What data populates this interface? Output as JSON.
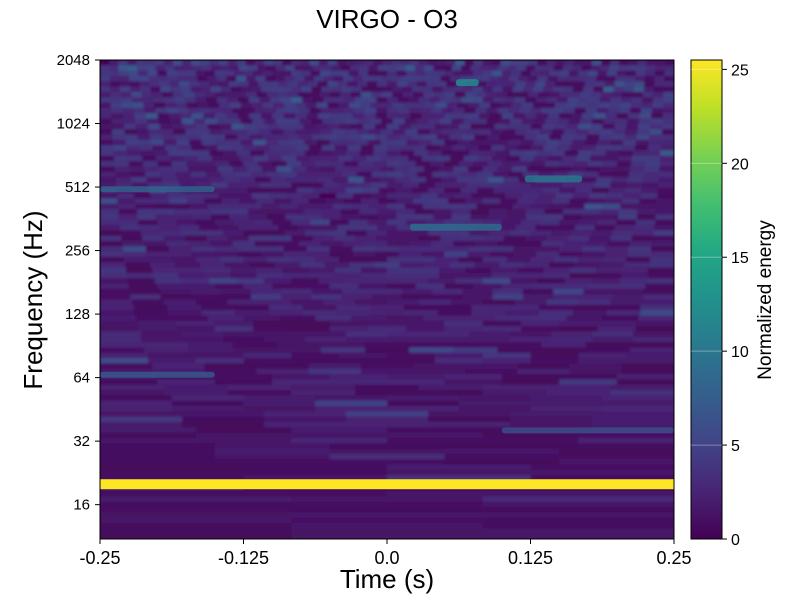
{
  "chart_data": {
    "type": "heatmap",
    "title": "VIRGO - O3",
    "xlabel": "Time (s)",
    "ylabel": "Frequency (Hz)",
    "colorbar_label": "Normalized energy",
    "colormap": "viridis",
    "x_ticks": [
      "-0.25",
      "-0.125",
      "0.0",
      "0.125",
      "0.25"
    ],
    "x_tick_values": [
      -0.25,
      -0.125,
      0.0,
      0.125,
      0.25
    ],
    "xlim": [
      -0.25,
      0.25
    ],
    "y_scale": "log2",
    "y_ticks": [
      "16",
      "32",
      "64",
      "128",
      "256",
      "512",
      "1024",
      "2048"
    ],
    "y_tick_values": [
      16,
      32,
      64,
      128,
      256,
      512,
      1024,
      2048
    ],
    "ylim": [
      11,
      2048
    ],
    "colorbar_ticks": [
      "0",
      "5",
      "10",
      "15",
      "20",
      "25"
    ],
    "colorbar_tick_values": [
      0,
      5,
      10,
      15,
      20,
      25
    ],
    "clim": [
      0,
      25.5
    ],
    "features": [
      {
        "label": "line",
        "frequency_hz": 20,
        "time_range_s": [
          -0.25,
          0.25
        ],
        "energy": 25.5
      },
      {
        "label": "band",
        "frequency_hz": 66,
        "time_range_s": [
          -0.25,
          -0.15
        ],
        "energy": 7
      },
      {
        "label": "band",
        "frequency_hz": 36,
        "time_range_s": [
          0.1,
          0.25
        ],
        "energy": 6
      },
      {
        "label": "band",
        "frequency_hz": 500,
        "time_range_s": [
          -0.25,
          -0.15
        ],
        "energy": 8
      },
      {
        "label": "blob",
        "frequency_hz": 330,
        "time_range_s": [
          0.02,
          0.1
        ],
        "energy": 9
      },
      {
        "label": "blob",
        "frequency_hz": 560,
        "time_range_s": [
          0.12,
          0.17
        ],
        "energy": 10
      },
      {
        "label": "blob",
        "frequency_hz": 1600,
        "time_range_s": [
          0.06,
          0.08
        ],
        "energy": 12
      }
    ]
  }
}
